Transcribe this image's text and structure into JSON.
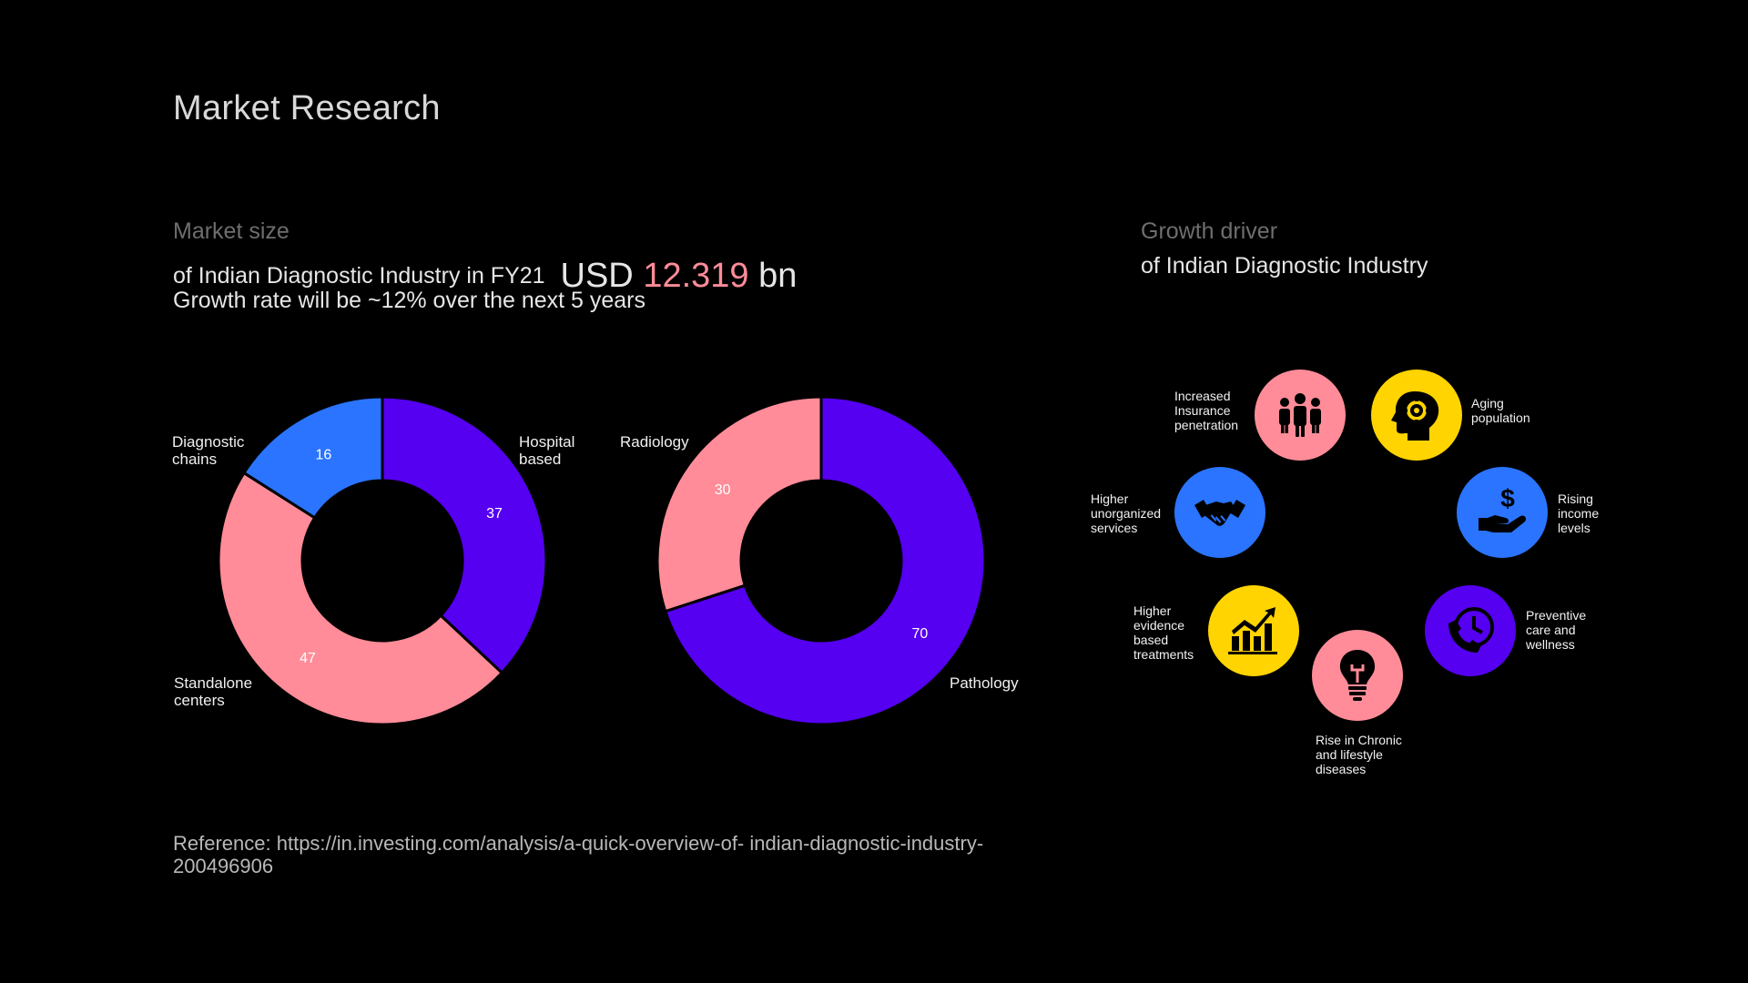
{
  "title": "Market Research",
  "market_size": {
    "heading": "Market size",
    "subtitle_prefix": "of Indian Diagnostic Industry in FY21",
    "usd_label": "USD",
    "amount": "12.319",
    "unit": "bn",
    "growth_text": "Growth rate will be ~12% over the next 5 years"
  },
  "growth_driver": {
    "heading": "Growth driver",
    "subtitle": "of Indian Diagnostic Industry",
    "items": [
      {
        "label": "Increased Insurance penetration",
        "icon": "people-group-icon",
        "color": "#ff8c98"
      },
      {
        "label": "Aging population",
        "icon": "head-gear-icon",
        "color": "#ffd400"
      },
      {
        "label": "Higher unorganized services",
        "icon": "handshake-icon",
        "color": "#2a74ff"
      },
      {
        "label": "Rising income levels",
        "icon": "hand-dollar-icon",
        "color": "#2a74ff"
      },
      {
        "label": "Higher evidence based treatments",
        "icon": "growth-chart-icon",
        "color": "#ffd400"
      },
      {
        "label": "Preventive care and wellness",
        "icon": "phone-clock-icon",
        "color": "#5500f0"
      },
      {
        "label": "Rise in Chronic and lifestyle diseases",
        "icon": "lightbulb-icon",
        "color": "#ff8c98"
      }
    ]
  },
  "reference": "Reference: https://in.investing.com/analysis/a-quick-overview-of- indian-diagnostic-industry-200496906",
  "chart_data": [
    {
      "type": "pie",
      "categories": [
        "Hospital based",
        "Standalone centers",
        "Diagnostic chains"
      ],
      "values": [
        37,
        47,
        16
      ],
      "colors": [
        "#5500f0",
        "#ff8c98",
        "#2a74ff"
      ]
    },
    {
      "type": "pie",
      "categories": [
        "Pathology",
        "Radiology"
      ],
      "values": [
        70,
        30
      ],
      "colors": [
        "#5500f0",
        "#ff8c98"
      ]
    }
  ]
}
